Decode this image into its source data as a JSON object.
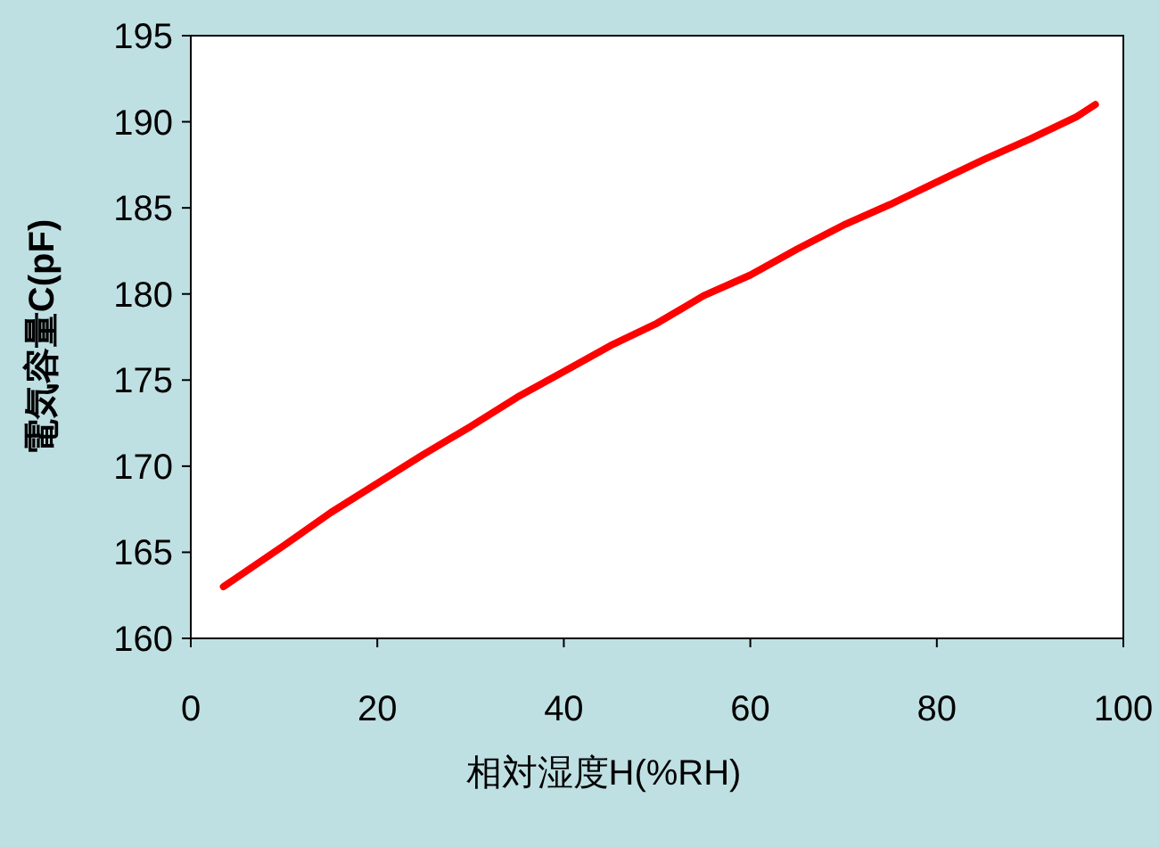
{
  "chart_data": {
    "type": "line",
    "xlabel": "相対湿度H(%RH)",
    "ylabel": "電気容量C(pF)",
    "x": [
      3.5,
      10,
      15,
      20,
      25,
      30,
      35,
      40,
      45,
      50,
      55,
      60,
      65,
      70,
      75,
      80,
      85,
      90,
      95,
      97
    ],
    "series": [
      {
        "color": "#ff0000",
        "values": [
          163,
          165.4,
          167.3,
          169,
          170.7,
          172.3,
          174,
          175.5,
          177,
          178.3,
          179.9,
          181.1,
          182.6,
          184,
          185.2,
          186.5,
          187.8,
          189,
          190.3,
          191
        ]
      }
    ],
    "xlim": [
      0,
      100
    ],
    "xticks": [
      0,
      20,
      40,
      60,
      80,
      100
    ],
    "ylim": [
      160,
      195
    ],
    "yticks": [
      160,
      165,
      170,
      175,
      180,
      185,
      190,
      195
    ],
    "grid": false,
    "marker": "none",
    "line_style": "solid"
  }
}
